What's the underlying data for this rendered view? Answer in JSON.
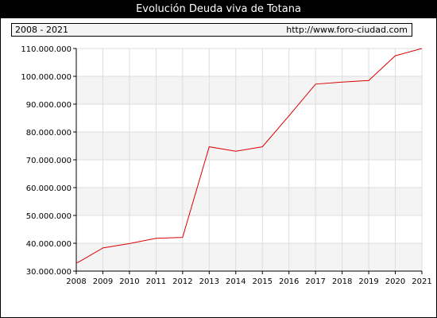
{
  "header": {
    "title": "Evolución Deuda viva de Totana",
    "period": "2008 - 2021",
    "url": "http://www.foro-ciudad.com"
  },
  "colors": {
    "line": "#dd0000",
    "band": "#f4f4f4",
    "grid": "#dddddd"
  },
  "chart_data": {
    "type": "line",
    "title": "Evolución Deuda viva de Totana",
    "xlabel": "",
    "ylabel": "",
    "categories": [
      "2008",
      "2009",
      "2010",
      "2011",
      "2012",
      "2013",
      "2014",
      "2015",
      "2016",
      "2017",
      "2018",
      "2019",
      "2020",
      "2021"
    ],
    "x": [
      2008,
      2009,
      2010,
      2011,
      2012,
      2013,
      2014,
      2015,
      2016,
      2017,
      2018,
      2019,
      2020,
      2021
    ],
    "series": [
      {
        "x": [
          2008,
          2008.1,
          2009,
          2010,
          2011,
          2012,
          2013,
          2014,
          2015,
          2016,
          2017,
          2018,
          2019,
          2020,
          2021
        ],
        "values": [
          32900000,
          33300000,
          38300000,
          39900000,
          41800000,
          42100000,
          74700000,
          73100000,
          74700000,
          85800000,
          97200000,
          97900000,
          98500000,
          107400000,
          110000000
        ]
      }
    ],
    "ylim": [
      30000000,
      110000000
    ],
    "yticks": [
      30000000,
      40000000,
      50000000,
      60000000,
      70000000,
      80000000,
      90000000,
      100000000,
      110000000
    ],
    "ytick_labels": [
      "30.000.000",
      "40.000.000",
      "50.000.000",
      "60.000.000",
      "70.000.000",
      "80.000.000",
      "90.000.000",
      "100.000.000",
      "110.000.000"
    ],
    "grid": true,
    "legend": "none"
  }
}
